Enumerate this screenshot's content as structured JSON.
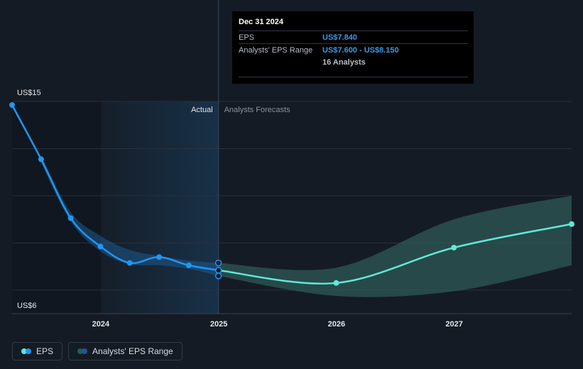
{
  "colors": {
    "background": "#151b24",
    "eps_line": "#2196f3",
    "forecast_line": "#5ee8d8",
    "forecast_band": "#2d5a55",
    "actual_band": "#1e5a8c",
    "tooltip_value": "#3b9be6"
  },
  "y_axis": {
    "top_label": "US$15",
    "bottom_label": "US$6"
  },
  "regions": {
    "actual": "Actual",
    "forecast": "Analysts Forecasts"
  },
  "tooltip": {
    "date": "Dec 31 2024",
    "eps_label": "EPS",
    "eps_value": "US$7.840",
    "range_label": "Analysts' EPS Range",
    "range_value": "US$7.600 - US$8.150",
    "analysts": "16 Analysts"
  },
  "legend": {
    "eps": "EPS",
    "range": "Analysts' EPS Range"
  },
  "chart_data": {
    "type": "line",
    "ylim": [
      6,
      15
    ],
    "xlim": [
      "2023-04-01",
      "2027-12-31"
    ],
    "x_ticks": [
      "2024",
      "2025",
      "2026",
      "2027"
    ],
    "series": [
      {
        "name": "EPS",
        "kind": "actual",
        "x": [
          "2023-04-01",
          "2023-06-30",
          "2023-09-30",
          "2023-12-31",
          "2024-03-31",
          "2024-06-30",
          "2024-09-30",
          "2024-12-31"
        ],
        "values": [
          14.85,
          12.55,
          10.05,
          8.85,
          8.15,
          8.4,
          8.05,
          7.84
        ]
      },
      {
        "name": "Analysts' EPS Range",
        "kind": "actual_range",
        "x": [
          "2023-06-30",
          "2023-09-30",
          "2023-12-31",
          "2024-03-31",
          "2024-06-30",
          "2024-09-30",
          "2024-12-31"
        ],
        "low": [
          12.4,
          9.9,
          8.65,
          8.1,
          8.05,
          7.9,
          7.6
        ],
        "high": [
          12.7,
          10.3,
          9.3,
          8.7,
          8.45,
          8.25,
          8.15
        ]
      },
      {
        "name": "EPS",
        "kind": "forecast",
        "x": [
          "2024-12-31",
          "2025-12-31",
          "2026-12-31",
          "2027-12-31"
        ],
        "values": [
          7.84,
          7.3,
          8.8,
          9.8
        ]
      },
      {
        "name": "Analysts' EPS Range",
        "kind": "forecast_range",
        "x": [
          "2024-12-31",
          "2025-12-31",
          "2026-12-31",
          "2027-12-31"
        ],
        "low": [
          7.6,
          6.75,
          6.95,
          8.05
        ],
        "high": [
          8.15,
          7.95,
          10.0,
          11.0
        ]
      }
    ]
  }
}
